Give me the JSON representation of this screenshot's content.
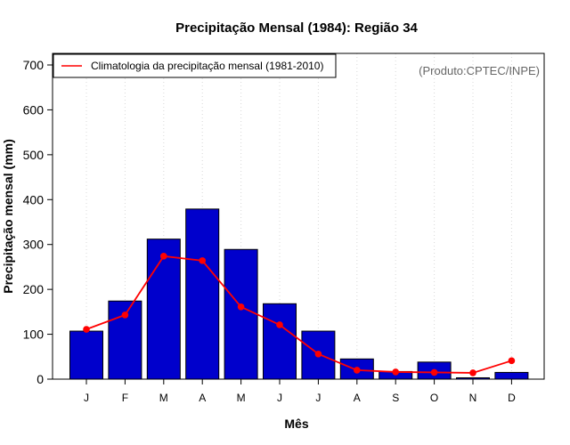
{
  "chart_data": {
    "type": "bar",
    "title": "Precipitação Mensal (1984): Região 34",
    "xlabel": "Mês",
    "ylabel": "Precipitação mensal (mm)",
    "categories": [
      "J",
      "F",
      "M",
      "A",
      "M",
      "J",
      "J",
      "A",
      "S",
      "O",
      "N",
      "D"
    ],
    "ylim": [
      0,
      700
    ],
    "yticks": [
      0,
      100,
      200,
      300,
      400,
      500,
      600,
      700
    ],
    "series": [
      {
        "name": "Precipitação mensal 1984",
        "type": "bar",
        "color": "#0000cc",
        "values": [
          107,
          174,
          312,
          379,
          289,
          168,
          107,
          45,
          17,
          38,
          3,
          15
        ]
      },
      {
        "name": "Climatologia da precipitação mensal (1981-2010)",
        "type": "line",
        "color": "#ff0000",
        "values": [
          111,
          143,
          274,
          264,
          161,
          121,
          56,
          20,
          16,
          15,
          14,
          41
        ]
      }
    ],
    "legend": {
      "position": "top-left",
      "entries": [
        "Climatologia da precipitação mensal (1981-2010)"
      ]
    },
    "annotation": "(Produto:CPTEC/INPE)",
    "grid": "vertical-dotted"
  }
}
